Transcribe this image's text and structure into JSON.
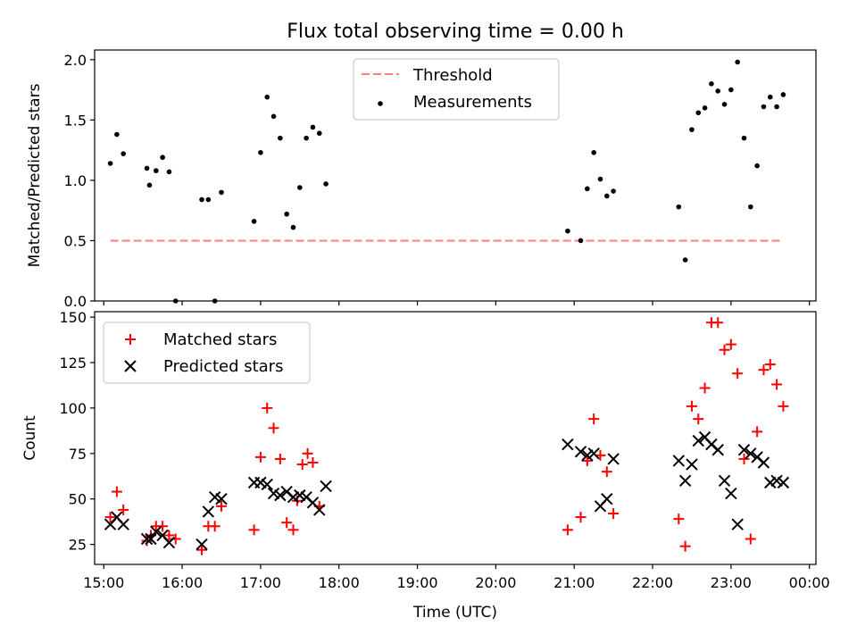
{
  "title": "Flux total observing time = 0.00 h",
  "chart_data": [
    {
      "type": "scatter",
      "ylabel": "Matched/Predicted stars",
      "ylim": [
        0,
        2.08
      ],
      "yticks": [
        "0.0",
        "0.5",
        "1.0",
        "1.5",
        "2.0"
      ],
      "ytick_values": [
        0,
        0.5,
        1.0,
        1.5,
        2.0
      ],
      "legend": {
        "placement": "top-center"
      },
      "threshold": {
        "name": "Threshold",
        "value": 0.5,
        "x_start": "15:05",
        "x_end": "23:40",
        "color": "#ff7f7f"
      },
      "series": [
        {
          "name": "Measurements",
          "color": "#000000",
          "x": [
            "15:05",
            "15:10",
            "15:15",
            "15:33",
            "15:35",
            "15:40",
            "15:45",
            "15:50",
            "15:55",
            "16:15",
            "16:20",
            "16:25",
            "16:30",
            "16:55",
            "17:00",
            "17:05",
            "17:10",
            "17:15",
            "17:20",
            "17:25",
            "17:30",
            "17:35",
            "17:40",
            "17:45",
            "17:50",
            "20:55",
            "21:05",
            "21:10",
            "21:15",
            "21:20",
            "21:25",
            "21:30",
            "22:20",
            "22:25",
            "22:30",
            "22:35",
            "22:40",
            "22:45",
            "22:50",
            "22:55",
            "23:00",
            "23:05",
            "23:10",
            "23:15",
            "23:20",
            "23:25",
            "23:30",
            "23:35",
            "23:40"
          ],
          "y": [
            1.14,
            1.38,
            1.22,
            1.1,
            0.96,
            1.08,
            1.19,
            1.07,
            0.0,
            0.84,
            0.84,
            0.0,
            0.9,
            0.66,
            1.23,
            1.69,
            1.53,
            1.35,
            0.72,
            0.61,
            0.94,
            1.35,
            1.44,
            1.39,
            0.97,
            0.58,
            0.5,
            0.93,
            1.23,
            1.01,
            0.87,
            0.91,
            0.78,
            0.34,
            1.42,
            1.56,
            1.6,
            1.8,
            1.74,
            1.63,
            1.75,
            1.98,
            1.35,
            0.78,
            1.12,
            1.61,
            1.69,
            1.61,
            1.71
          ]
        }
      ]
    },
    {
      "type": "scatter",
      "xlabel": "Time (UTC)",
      "ylabel": "Count",
      "ylim": [
        14,
        153
      ],
      "yticks": [
        "25",
        "50",
        "75",
        "100",
        "125",
        "150"
      ],
      "ytick_values": [
        25,
        50,
        75,
        100,
        125,
        150
      ],
      "xticks": [
        "15:00",
        "16:00",
        "17:00",
        "18:00",
        "19:00",
        "20:00",
        "21:00",
        "22:00",
        "23:00",
        "00:00"
      ],
      "legend": {
        "placement": "top-left"
      },
      "series": [
        {
          "name": "Matched stars",
          "marker": "plus",
          "color": "#ff0000",
          "x": [
            "15:05",
            "15:10",
            "15:15",
            "15:33",
            "15:36",
            "15:40",
            "15:45",
            "15:50",
            "15:55",
            "16:15",
            "16:20",
            "16:25",
            "16:30",
            "16:55",
            "17:00",
            "17:05",
            "17:10",
            "17:15",
            "17:20",
            "17:25",
            "17:28",
            "17:32",
            "17:36",
            "17:40",
            "17:45",
            "20:55",
            "21:05",
            "21:10",
            "21:15",
            "21:20",
            "21:25",
            "21:30",
            "22:20",
            "22:25",
            "22:30",
            "22:35",
            "22:40",
            "22:45",
            "22:50",
            "22:55",
            "23:00",
            "23:05",
            "23:10",
            "23:15",
            "23:20",
            "23:25",
            "23:30",
            "23:35",
            "23:40"
          ],
          "y": [
            40,
            54,
            44,
            27,
            30,
            35,
            35,
            30,
            28,
            22,
            35,
            35,
            46,
            33,
            73,
            100,
            89,
            72,
            37,
            33,
            49,
            69,
            75,
            70,
            46,
            33,
            40,
            71,
            94,
            74,
            65,
            42,
            39,
            24,
            101,
            94,
            111,
            147,
            147,
            132,
            135,
            119,
            72,
            28,
            87,
            121,
            124,
            113,
            101
          ]
        },
        {
          "name": "Predicted stars",
          "marker": "x",
          "color": "#000000",
          "x": [
            "15:05",
            "15:10",
            "15:15",
            "15:33",
            "15:36",
            "15:40",
            "15:45",
            "15:50",
            "16:15",
            "16:20",
            "16:25",
            "16:30",
            "16:55",
            "17:00",
            "17:05",
            "17:10",
            "17:15",
            "17:20",
            "17:25",
            "17:30",
            "17:35",
            "17:40",
            "17:45",
            "17:50",
            "20:55",
            "21:05",
            "21:10",
            "21:15",
            "21:20",
            "21:25",
            "21:30",
            "22:20",
            "22:25",
            "22:30",
            "22:35",
            "22:40",
            "22:45",
            "22:50",
            "22:55",
            "23:00",
            "23:05",
            "23:10",
            "23:15",
            "23:20",
            "23:25",
            "23:30",
            "23:35",
            "23:40"
          ],
          "y": [
            36,
            40,
            36,
            28,
            28,
            32,
            30,
            26,
            25,
            43,
            51,
            50,
            59,
            59,
            58,
            53,
            52,
            54,
            51,
            52,
            51,
            48,
            44,
            57,
            80,
            76,
            74,
            75,
            46,
            50,
            72,
            71,
            60,
            69,
            82,
            84,
            80,
            77,
            60,
            53,
            36,
            77,
            75,
            73,
            70,
            59,
            60,
            59
          ]
        }
      ]
    }
  ]
}
